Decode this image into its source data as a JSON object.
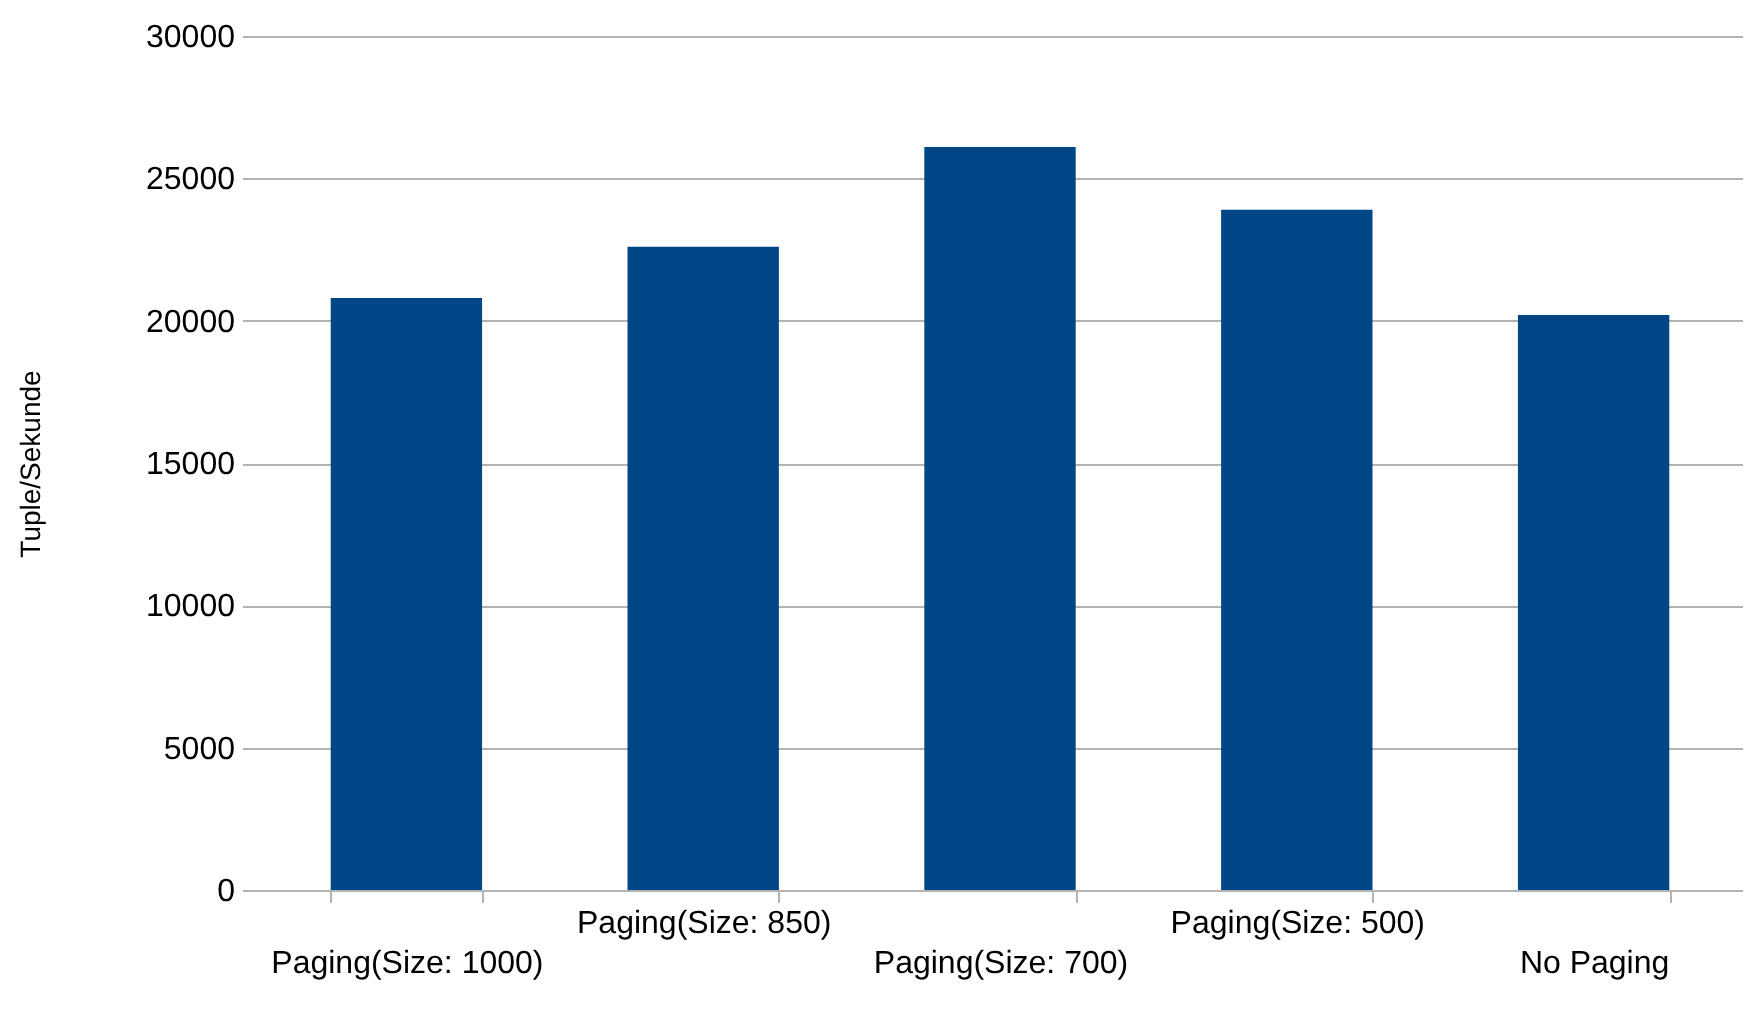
{
  "chart_data": {
    "type": "bar",
    "ylabel": "Tuple/Sekunde",
    "categories": [
      "Paging(Size: 1000)",
      "Paging(Size: 850)",
      "Paging(Size: 700)",
      "Paging(Size: 500)",
      "No Paging"
    ],
    "values": [
      20800,
      22600,
      26100,
      23900,
      20200
    ],
    "color": "#004586",
    "ylim": [
      0,
      30000
    ],
    "yticks": [
      0,
      5000,
      10000,
      15000,
      20000,
      25000,
      30000
    ],
    "grid": "y"
  }
}
